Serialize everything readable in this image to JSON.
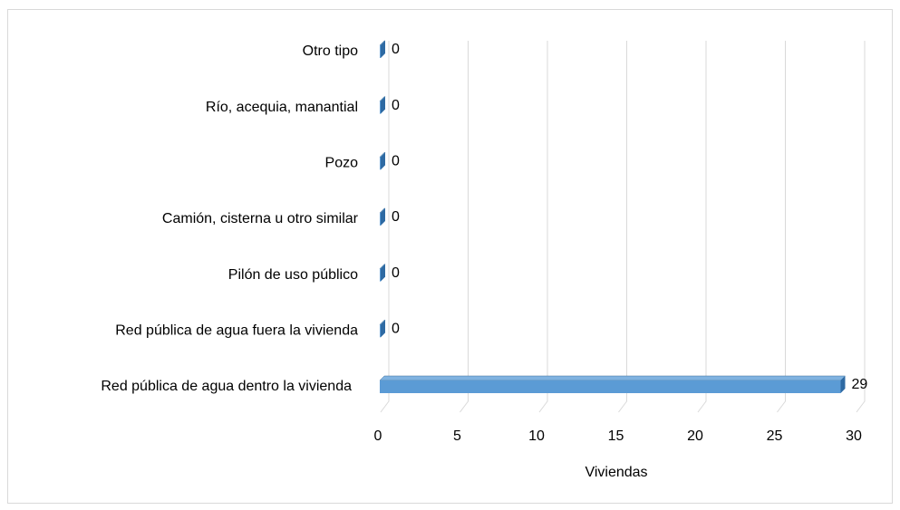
{
  "chart_data": {
    "type": "bar3d_horizontal",
    "categories": [
      "Red pública de agua dentro la vivienda",
      "Red pública de agua fuera la vivienda",
      "Pilón de uso público",
      "Camión, cisterna u otro similar",
      "Pozo",
      "Río, acequia, manantial",
      "Otro tipo"
    ],
    "values": [
      29,
      0,
      0,
      0,
      0,
      0,
      0
    ],
    "color": "#5b9bd5",
    "xlabel": "Viviendas",
    "xlim": [
      0,
      30
    ],
    "xticks": [
      0,
      5,
      10,
      15,
      20,
      25,
      30
    ],
    "grid": true
  }
}
